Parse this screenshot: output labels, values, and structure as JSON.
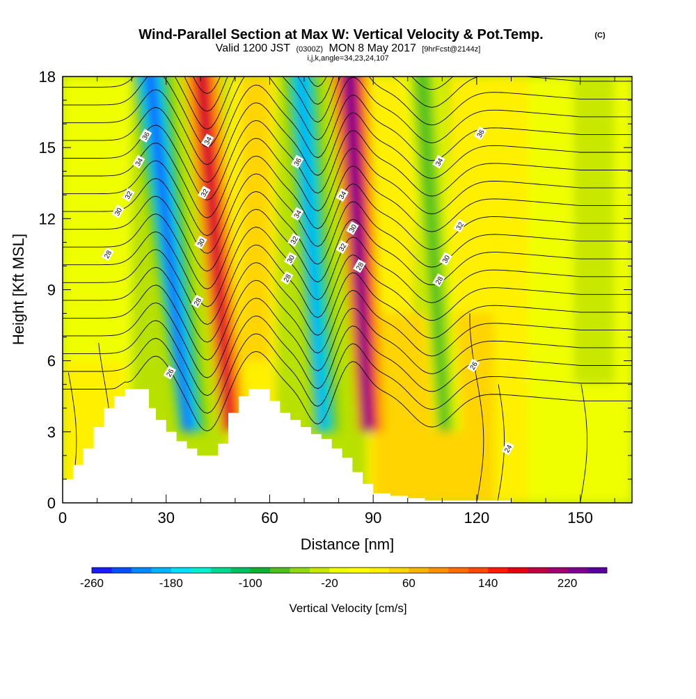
{
  "header": {
    "title": "Wind-Parallel Section at Max W: Vertical Velocity & Pot.Temp.",
    "copyright": "(C)",
    "valid_main1": "Valid 1200 JST",
    "valid_small1": "(0300Z)",
    "valid_main2": "MON 8 May 2017",
    "valid_small2": "[9hrFcst@2144z]",
    "params": "i,j,k,angle=34,23,24,107"
  },
  "chart_data": {
    "type": "heatmap",
    "xlabel": "Distance [nm]",
    "ylabel": "Height [Kft MSL]",
    "xlim": [
      0,
      165
    ],
    "ylim": [
      0,
      18
    ],
    "x_ticks": [
      0,
      30,
      60,
      90,
      120,
      150
    ],
    "y_ticks": [
      0,
      3,
      6,
      9,
      12,
      15,
      18
    ],
    "colorbar": {
      "label": "Vertical Velocity [cm/s]",
      "range": [
        -260,
        260
      ],
      "tick_values": [
        -260,
        -180,
        -100,
        -20,
        60,
        140,
        220
      ],
      "tick_labels": [
        "-260",
        "-180",
        "-100",
        "-20",
        "60",
        "140",
        "220"
      ],
      "colors": [
        "#1a1aff",
        "#0050ff",
        "#0088ff",
        "#00b4ff",
        "#00e0ff",
        "#00f0d0",
        "#00d890",
        "#00c060",
        "#10b030",
        "#50c020",
        "#90d810",
        "#c8e800",
        "#f0ff00",
        "#ffff00",
        "#fff000",
        "#ffd400",
        "#ffb400",
        "#ff9000",
        "#ff6c00",
        "#ff4800",
        "#ff1800",
        "#e80010",
        "#c00040",
        "#a00070",
        "#800090",
        "#5a00a0"
      ]
    },
    "velocity_features": [
      {
        "kind": "downdraft",
        "x_at_top": 25,
        "x_at_base": 36,
        "max_magnitude": -260
      },
      {
        "kind": "updraft",
        "x_at_top": 40,
        "x_at_base": 48,
        "max_magnitude": 200
      },
      {
        "kind": "downdraft",
        "x_at_top": 69,
        "x_at_base": 75,
        "max_magnitude": -220
      },
      {
        "kind": "updraft",
        "x_at_top": 83,
        "x_at_base": 88,
        "max_magnitude": 260
      },
      {
        "kind": "downdraft",
        "x_at_top": 104,
        "x_at_base": 110,
        "max_magnitude": -80
      }
    ],
    "terrain": {
      "x": [
        0,
        3,
        6,
        9,
        12,
        15,
        18,
        21,
        25,
        27,
        30,
        33,
        36,
        39,
        42,
        45,
        48,
        51,
        54,
        57,
        60,
        63,
        66,
        69,
        72,
        75,
        78,
        81,
        84,
        87,
        90,
        95,
        100,
        105,
        110,
        130,
        150,
        160,
        165
      ],
      "y": [
        1.0,
        1.6,
        2.3,
        3.2,
        4.0,
        4.5,
        4.8,
        4.8,
        4.0,
        3.5,
        3.0,
        2.6,
        2.3,
        2.0,
        2.0,
        2.5,
        3.8,
        4.5,
        4.8,
        4.8,
        4.3,
        3.8,
        3.5,
        3.2,
        2.9,
        2.7,
        2.3,
        1.9,
        1.3,
        0.8,
        0.4,
        0.3,
        0.2,
        0.1,
        0.1,
        0.0,
        0.0,
        0.0,
        0.0
      ]
    },
    "isentrope_labels": [
      {
        "value": "36",
        "x": 24,
        "y": 15.5
      },
      {
        "value": "34",
        "x": 22,
        "y": 14.4
      },
      {
        "value": "32",
        "x": 19,
        "y": 13.0
      },
      {
        "value": "30",
        "x": 16,
        "y": 12.3
      },
      {
        "value": "28",
        "x": 13,
        "y": 10.5
      },
      {
        "value": "26",
        "x": 31,
        "y": 5.5
      },
      {
        "value": "34",
        "x": 42,
        "y": 15.3
      },
      {
        "value": "32",
        "x": 41,
        "y": 13.1
      },
      {
        "value": "30",
        "x": 40,
        "y": 11.0
      },
      {
        "value": "28",
        "x": 39,
        "y": 8.5
      },
      {
        "value": "36",
        "x": 68,
        "y": 14.4
      },
      {
        "value": "34",
        "x": 68,
        "y": 12.2
      },
      {
        "value": "32",
        "x": 67,
        "y": 11.1
      },
      {
        "value": "30",
        "x": 66,
        "y": 10.3
      },
      {
        "value": "28",
        "x": 65,
        "y": 9.5
      },
      {
        "value": "34",
        "x": 81,
        "y": 13.0
      },
      {
        "value": "30",
        "x": 84,
        "y": 11.6
      },
      {
        "value": "32",
        "x": 81,
        "y": 10.8
      },
      {
        "value": "28",
        "x": 86,
        "y": 10.0
      },
      {
        "value": "36",
        "x": 121,
        "y": 15.6
      },
      {
        "value": "34",
        "x": 109,
        "y": 14.4
      },
      {
        "value": "32",
        "x": 115,
        "y": 11.7
      },
      {
        "value": "30",
        "x": 111,
        "y": 10.3
      },
      {
        "value": "28",
        "x": 109,
        "y": 9.4
      },
      {
        "value": "26",
        "x": 119,
        "y": 5.8
      },
      {
        "value": "24",
        "x": 129,
        "y": 2.3
      }
    ]
  }
}
